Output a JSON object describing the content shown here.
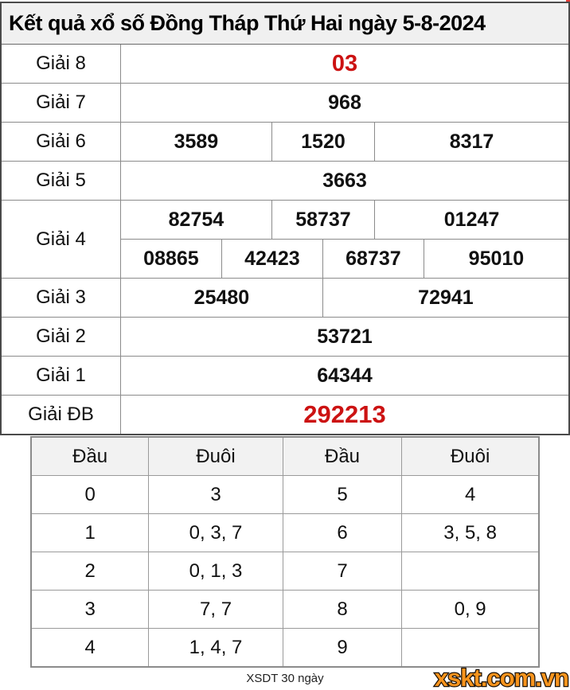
{
  "title": "Kết quả xổ số Đồng Tháp Thứ Hai ngày 5-8-2024",
  "colors": {
    "highlight_red": "#cc1212",
    "title_bg": "#f0f0f0",
    "table_border": "#8b8b8b",
    "logo_orange": "#f7941d"
  },
  "results": [
    {
      "label": "Giải 8",
      "rows": [
        [
          "03"
        ]
      ]
    },
    {
      "label": "Giải 7",
      "rows": [
        [
          "968"
        ]
      ]
    },
    {
      "label": "Giải 6",
      "rows": [
        [
          "3589",
          "1520",
          "8317"
        ]
      ]
    },
    {
      "label": "Giải 5",
      "rows": [
        [
          "3663"
        ]
      ]
    },
    {
      "label": "Giải 4",
      "rows": [
        [
          "82754",
          "58737",
          "01247"
        ],
        [
          "08865",
          "42423",
          "68737",
          "95010"
        ]
      ]
    },
    {
      "label": "Giải 3",
      "rows": [
        [
          "25480",
          "72941"
        ]
      ]
    },
    {
      "label": "Giải 2",
      "rows": [
        [
          "53721"
        ]
      ]
    },
    {
      "label": "Giải 1",
      "rows": [
        [
          "64344"
        ]
      ]
    },
    {
      "label": "Giải ĐB",
      "rows": [
        [
          "292213"
        ]
      ]
    }
  ],
  "head_tail": {
    "headers": [
      "Đầu",
      "Đuôi",
      "Đầu",
      "Đuôi"
    ],
    "rows": [
      [
        "0",
        "3",
        "5",
        "4"
      ],
      [
        "1",
        "0, 3, 7",
        "6",
        "3, 5, 8"
      ],
      [
        "2",
        "0, 1, 3",
        "7",
        ""
      ],
      [
        "3",
        "7, 7",
        "8",
        "0, 9"
      ],
      [
        "4",
        "1, 4, 7",
        "9",
        ""
      ]
    ]
  },
  "footer": {
    "note": "XSDT 30 ngày",
    "logo": "xskt.com.vn"
  }
}
